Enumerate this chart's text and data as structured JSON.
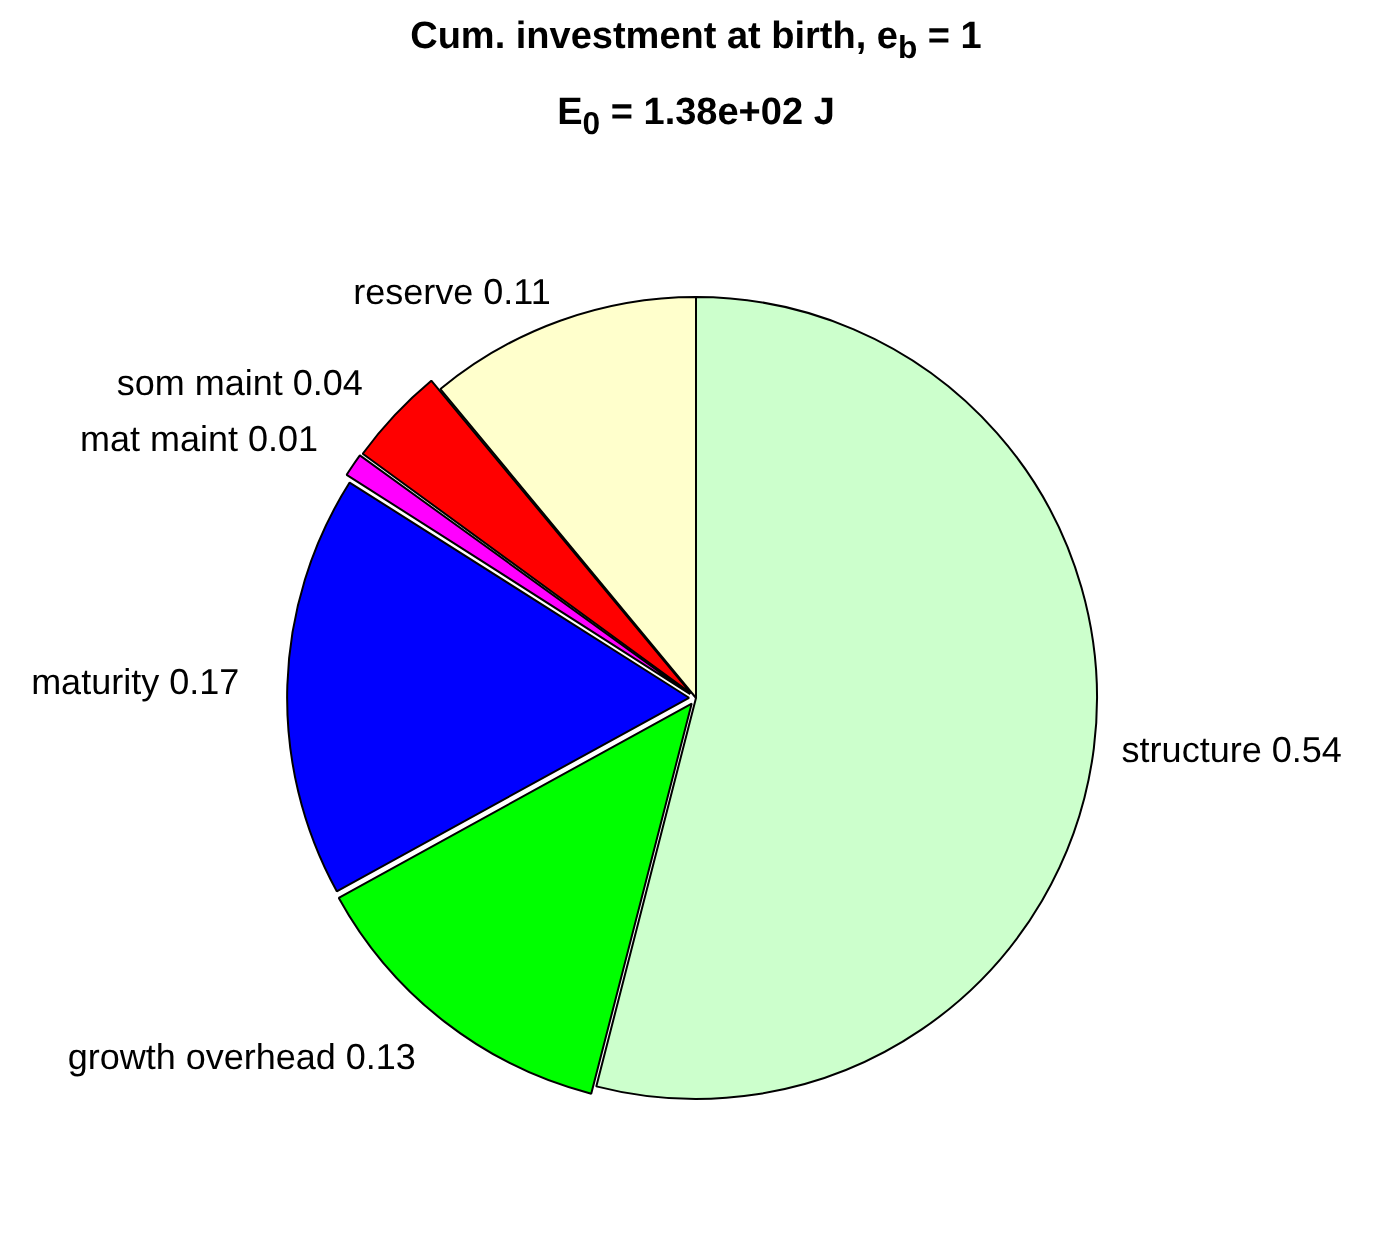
{
  "chart_data": {
    "type": "pie",
    "title": "Cum. investment at birth, e$_{b}$ = 1",
    "subtitle": "E$_{0}$ = 1.38e+02 J",
    "categories": [
      "structure 0.54",
      "growth overhead 0.13",
      "maturity 0.17",
      "mat maint 0.01",
      "som maint 0.04",
      "reserve 0.11"
    ],
    "values": [
      0.54,
      0.13,
      0.17,
      0.01,
      0.04,
      0.11
    ],
    "colors": [
      "#ccffcc",
      "#00ff00",
      "#0000ff",
      "#ff00ff",
      "#ff0000",
      "#ffffcc"
    ],
    "legend": false
  }
}
